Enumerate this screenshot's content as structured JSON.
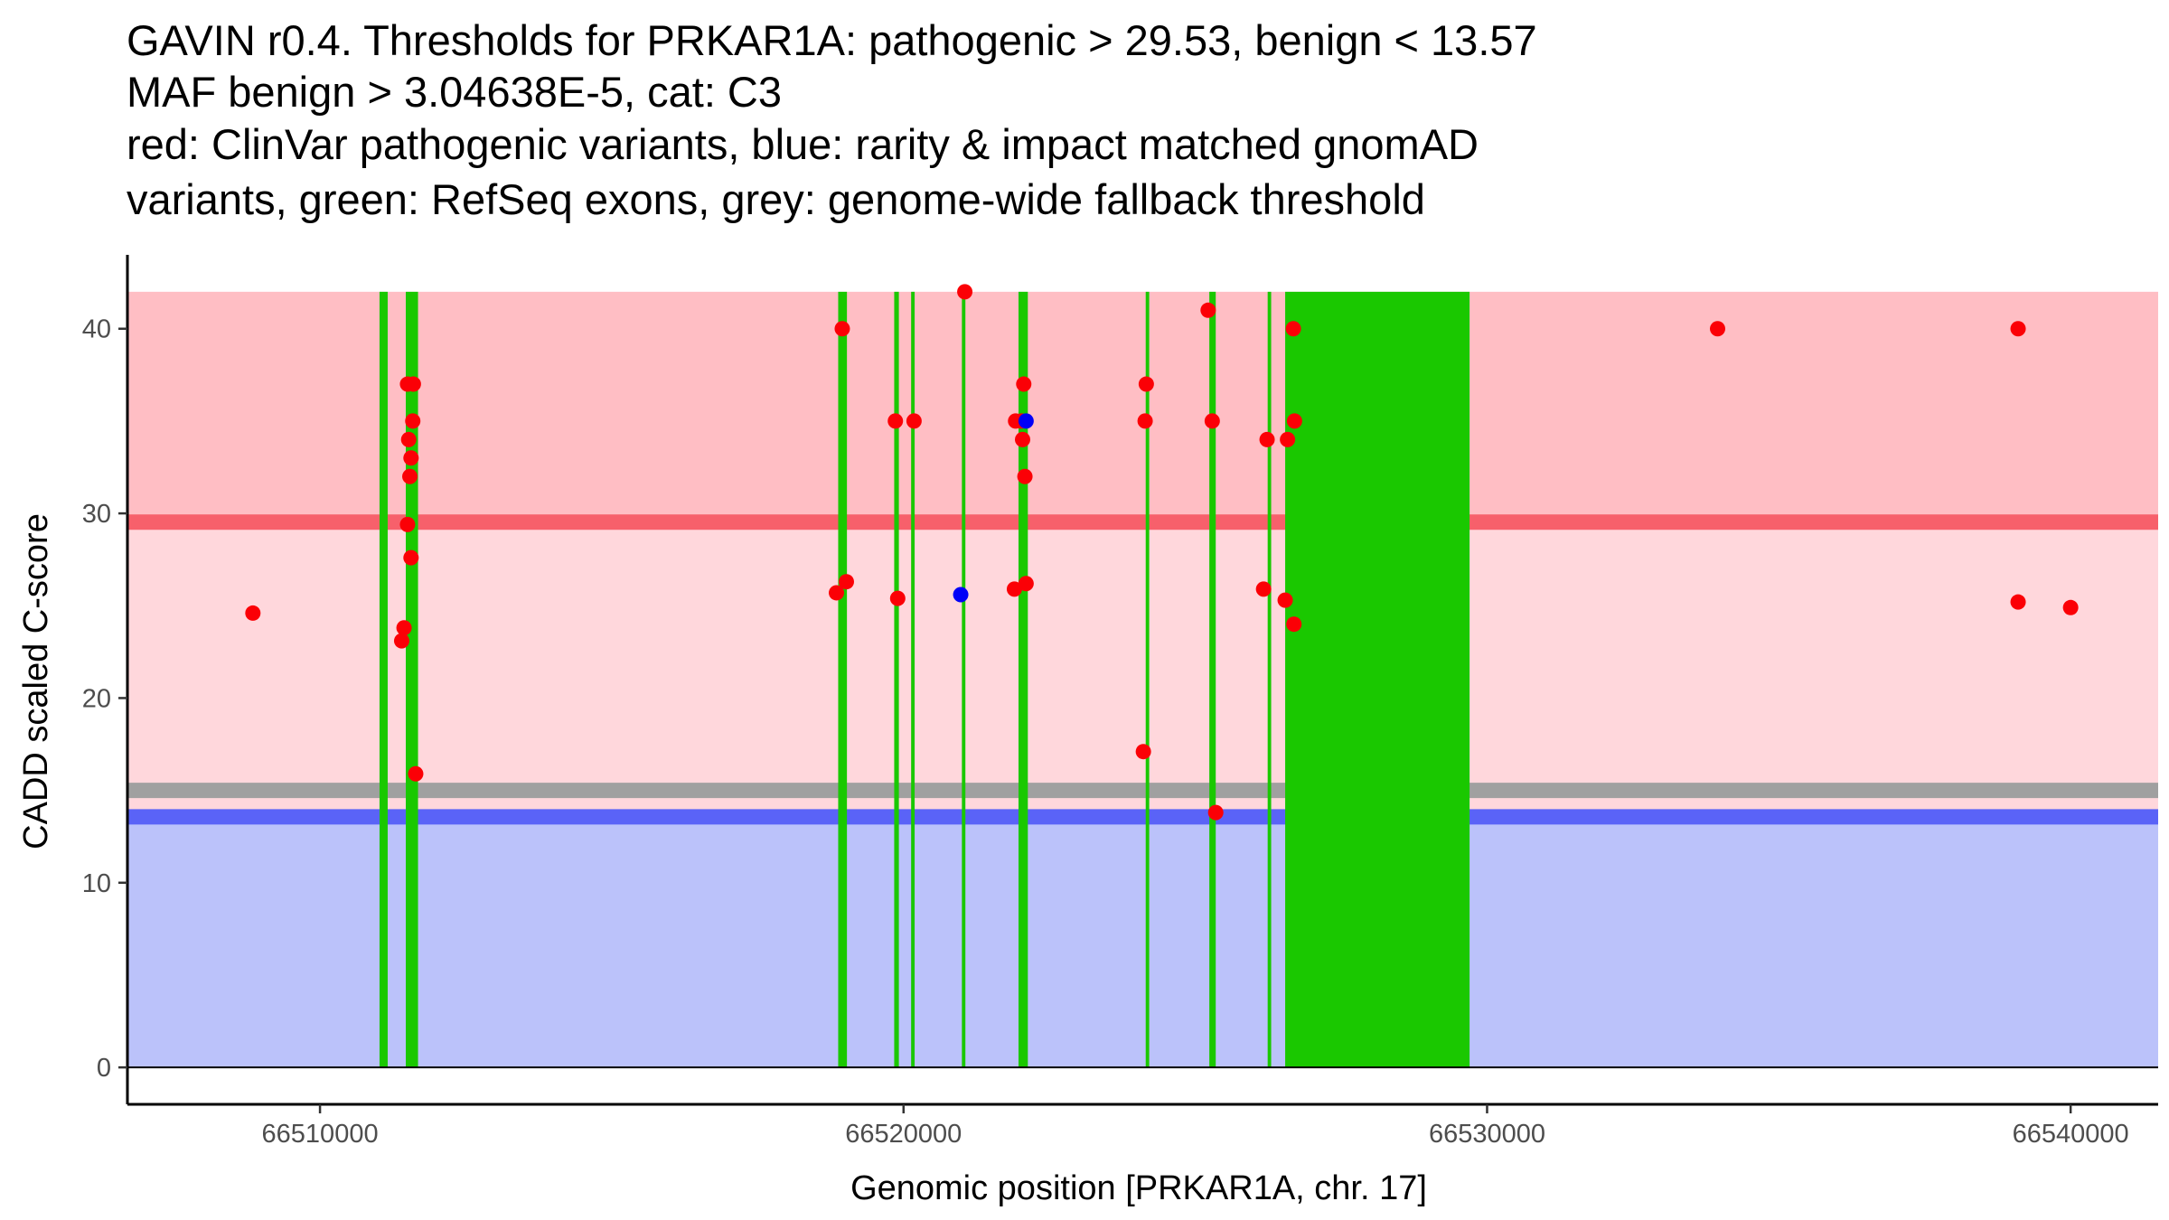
{
  "chart_data": {
    "type": "scatter",
    "title_lines": [
      "GAVIN r0.4. Thresholds for PRKAR1A: pathogenic > 29.53, benign < 13.57",
      "MAF benign > 3.04638E-5, cat: C3",
      "red: ClinVar pathogenic variants, blue: rarity & impact matched gnomAD",
      "variants, green: RefSeq exons, grey: genome-wide fallback threshold"
    ],
    "xlabel": "Genomic position [PRKAR1A, chr. 17]",
    "ylabel": "CADD scaled C-score",
    "xlim": [
      66506700,
      66541500
    ],
    "ylim": [
      -2,
      44
    ],
    "x_ticks": [
      66510000,
      66520000,
      66530000,
      66540000
    ],
    "y_ticks": [
      0,
      10,
      20,
      30,
      40
    ],
    "grid": false,
    "thresholds": {
      "pathogenic": 29.53,
      "benign": 13.57,
      "fallback": 15
    },
    "bands": [
      {
        "name": "benign-region",
        "y0": 0,
        "y1": 13.57,
        "color": "#bbc2fa"
      },
      {
        "name": "intermediate-region",
        "y0": 13.57,
        "y1": 29.53,
        "color": "#ffd7dc"
      },
      {
        "name": "pathogenic-region",
        "y0": 29.53,
        "y1": 42,
        "color": "#ffbec4"
      }
    ],
    "threshold_lines": [
      {
        "name": "fallback-threshold-line",
        "y": 15,
        "color": "#a0a0a0"
      },
      {
        "name": "benign-threshold-line",
        "y": 13.57,
        "color": "#5a63f7"
      },
      {
        "name": "pathogenic-threshold-line",
        "y": 29.53,
        "color": "#f7606b"
      }
    ],
    "exons": [
      {
        "start": 66511020,
        "end": 66511160
      },
      {
        "start": 66511470,
        "end": 66511680
      },
      {
        "start": 66518880,
        "end": 66519030
      },
      {
        "start": 66519840,
        "end": 66519920
      },
      {
        "start": 66520130,
        "end": 66520190
      },
      {
        "start": 66521000,
        "end": 66521060
      },
      {
        "start": 66521970,
        "end": 66522130
      },
      {
        "start": 66524150,
        "end": 66524210
      },
      {
        "start": 66525240,
        "end": 66525350
      },
      {
        "start": 66526240,
        "end": 66526300
      },
      {
        "start": 66526540,
        "end": 66529700
      }
    ],
    "exon_color": "#1ac800",
    "series": [
      {
        "name": "ClinVar pathogenic variants",
        "color": "#fb0006",
        "points": [
          [
            66508850,
            24.6
          ],
          [
            66511500,
            37
          ],
          [
            66511600,
            37
          ],
          [
            66511520,
            34
          ],
          [
            66511590,
            35
          ],
          [
            66511560,
            33
          ],
          [
            66511540,
            32
          ],
          [
            66511500,
            29.4
          ],
          [
            66511560,
            27.6
          ],
          [
            66511440,
            23.8
          ],
          [
            66511400,
            23.1
          ],
          [
            66511640,
            15.9
          ],
          [
            66518950,
            40
          ],
          [
            66518850,
            25.7
          ],
          [
            66519020,
            26.3
          ],
          [
            66519860,
            35
          ],
          [
            66519900,
            25.4
          ],
          [
            66520180,
            35
          ],
          [
            66521050,
            42
          ],
          [
            66521920,
            35
          ],
          [
            66522020,
            35
          ],
          [
            66522040,
            34
          ],
          [
            66522060,
            37
          ],
          [
            66522080,
            32
          ],
          [
            66521900,
            25.9
          ],
          [
            66522100,
            26.2
          ],
          [
            66524140,
            35
          ],
          [
            66524160,
            37
          ],
          [
            66524110,
            17.1
          ],
          [
            66525220,
            41
          ],
          [
            66525290,
            35
          ],
          [
            66525350,
            13.8
          ],
          [
            66526230,
            34
          ],
          [
            66526170,
            25.9
          ],
          [
            66526580,
            34
          ],
          [
            66526540,
            25.3
          ],
          [
            66526680,
            40
          ],
          [
            66526700,
            35
          ],
          [
            66526690,
            24
          ],
          [
            66533950,
            40
          ],
          [
            66539100,
            40
          ],
          [
            66539100,
            25.2
          ],
          [
            66540000,
            24.9
          ]
        ]
      },
      {
        "name": "rarity & impact matched gnomAD variants",
        "color": "#0000f7",
        "points": [
          [
            66522100,
            35
          ],
          [
            66520980,
            25.6
          ]
        ]
      }
    ]
  }
}
